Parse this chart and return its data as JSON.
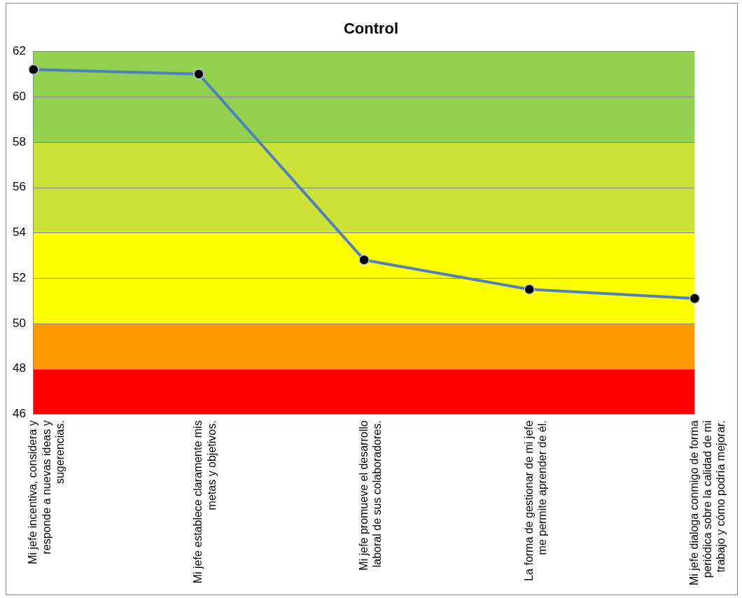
{
  "chart_data": {
    "type": "line",
    "title": "Control",
    "categories": [
      "Mi jefe incentiva, considera y responde a nuevas ideas y sugerencias.",
      "Mi jefe establece claramente mis metas y objetivos.",
      "Mi jefe promueve el desarrollo laboral de sus colaboradores.",
      "La forma de gestionar de mi jefe me permite aprender de él.",
      "Mi jefe dialoga conmigo de forma periódica sobre la calidad de mi trabajo y cómo podría mejorar."
    ],
    "series": [
      {
        "color": "#4f81bd",
        "values": [
          61.2,
          61.0,
          52.8,
          51.5,
          51.1
        ]
      }
    ],
    "ylim": [
      46,
      62
    ],
    "yticks": [
      46,
      48,
      50,
      52,
      54,
      56,
      58,
      60,
      62
    ],
    "bands": [
      {
        "axis": "y",
        "from": 46,
        "to": 48,
        "color": "#ff0000"
      },
      {
        "axis": "y",
        "from": 48,
        "to": 50,
        "color": "#ff9900"
      },
      {
        "axis": "y",
        "from": 50,
        "to": 54,
        "color": "#ffff00"
      },
      {
        "axis": "y",
        "from": 54,
        "to": 58,
        "color": "#cce236"
      },
      {
        "axis": "y",
        "from": 58,
        "to": 62,
        "color": "#92d050"
      }
    ],
    "grid": "y",
    "legend": false,
    "marker": "circle",
    "line_style": "solid"
  }
}
